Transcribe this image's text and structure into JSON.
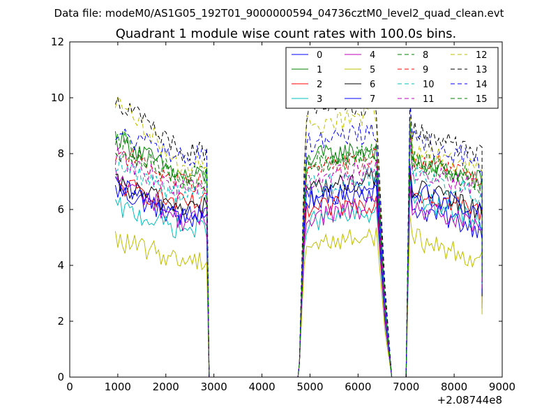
{
  "figure": {
    "suptitle": "Data file: modeM0/AS1G05_192T01_9000000594_04736cztM0_level2_quad_clean.evt"
  },
  "chart_data": {
    "type": "line",
    "title": "Quadrant 1 module wise count rates with 100.0s bins.",
    "xlabel": "",
    "ylabel": "",
    "xlim": [
      0,
      9000
    ],
    "ylim": [
      0,
      12
    ],
    "x_offset_label": "+2.08744e8",
    "x_ticks": [
      "0",
      "1000",
      "2000",
      "3000",
      "4000",
      "5000",
      "6000",
      "7000",
      "8000",
      "9000"
    ],
    "y_ticks": [
      "0",
      "2",
      "4",
      "6",
      "8",
      "10",
      "12"
    ],
    "grid": false,
    "legend_position": "top-right",
    "gaps": [
      [
        2900,
        4750
      ],
      [
        6700,
        7000
      ]
    ],
    "segments": [
      [
        950,
        2850
      ],
      [
        4780,
        6420
      ],
      [
        7080,
        8580
      ]
    ],
    "series": [
      {
        "name": "0",
        "color": "#0000ff",
        "dash": "solid",
        "levels": [
          6.7,
          5.7,
          6.3,
          5.3
        ]
      },
      {
        "name": "1",
        "color": "#008000",
        "dash": "solid",
        "levels": [
          8.6,
          7.2,
          7.8,
          7.0
        ]
      },
      {
        "name": "2",
        "color": "#ff0000",
        "dash": "solid",
        "levels": [
          6.9,
          6.2,
          5.9,
          5.9
        ]
      },
      {
        "name": "3",
        "color": "#00bfbf",
        "dash": "solid",
        "levels": [
          6.1,
          5.3,
          5.5,
          5.6
        ]
      },
      {
        "name": "4",
        "color": "#bf00bf",
        "dash": "solid",
        "levels": [
          7.2,
          5.6,
          5.7,
          5.3
        ]
      },
      {
        "name": "5",
        "color": "#bfbf00",
        "dash": "solid",
        "levels": [
          4.9,
          4.2,
          4.7,
          4.2
        ]
      },
      {
        "name": "6",
        "color": "#000000",
        "dash": "solid",
        "levels": [
          6.9,
          6.1,
          6.7,
          6.0
        ]
      },
      {
        "name": "7",
        "color": "#0000ff",
        "dash": "solid",
        "levels": [
          6.8,
          5.9,
          6.4,
          5.9
        ]
      },
      {
        "name": "8",
        "color": "#008000",
        "dash": "dashed",
        "levels": [
          8.7,
          6.9,
          7.6,
          6.9
        ]
      },
      {
        "name": "9",
        "color": "#ff0000",
        "dash": "dashed",
        "levels": [
          8.1,
          7.0,
          7.4,
          7.1
        ]
      },
      {
        "name": "10",
        "color": "#00bfbf",
        "dash": "dashed",
        "levels": [
          7.7,
          6.5,
          6.8,
          6.5
        ]
      },
      {
        "name": "11",
        "color": "#bf00bf",
        "dash": "dashed",
        "levels": [
          7.9,
          6.7,
          7.0,
          6.7
        ]
      },
      {
        "name": "12",
        "color": "#bfbf00",
        "dash": "dashed",
        "levels": [
          9.9,
          7.6,
          9.0,
          7.4
        ]
      },
      {
        "name": "13",
        "color": "#000000",
        "dash": "dashed",
        "levels": [
          10.0,
          8.1,
          9.4,
          8.0
        ]
      },
      {
        "name": "14",
        "color": "#0000ff",
        "dash": "dashed",
        "levels": [
          8.7,
          7.9,
          8.4,
          7.7
        ]
      },
      {
        "name": "15",
        "color": "#008000",
        "dash": "dashed",
        "levels": [
          8.2,
          7.2,
          7.6,
          7.0
        ]
      }
    ]
  }
}
